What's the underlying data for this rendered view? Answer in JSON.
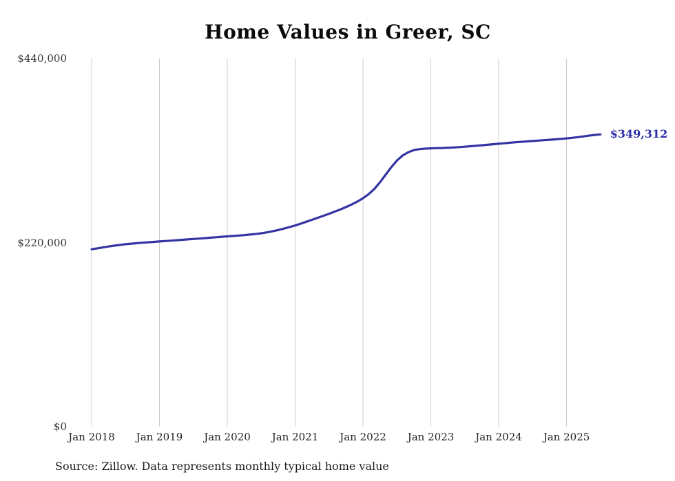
{
  "chart_data": {
    "type": "line",
    "title": "Home Values in Greer, SC",
    "xlabel": "",
    "ylabel": "",
    "ylim": [
      0,
      440000
    ],
    "grid": "vertical-only",
    "legend": "none",
    "series_name": "Monthly typical home value",
    "x_tick_labels": [
      "Jan 2018",
      "Jan 2019",
      "Jan 2020",
      "Jan 2021",
      "Jan 2022",
      "Jan 2023",
      "Jan 2024",
      "Jan 2025"
    ],
    "y_ticks": [
      {
        "value": 0,
        "label": "$0"
      },
      {
        "value": 220000,
        "label": "$220,000"
      },
      {
        "value": 440000,
        "label": "$440,000"
      }
    ],
    "end_label": "$349,312",
    "end_value": 349312,
    "x": [
      "2018-01",
      "2018-02",
      "2018-03",
      "2018-04",
      "2018-05",
      "2018-06",
      "2018-07",
      "2018-08",
      "2018-09",
      "2018-10",
      "2018-11",
      "2018-12",
      "2019-01",
      "2019-02",
      "2019-03",
      "2019-04",
      "2019-05",
      "2019-06",
      "2019-07",
      "2019-08",
      "2019-09",
      "2019-10",
      "2019-11",
      "2019-12",
      "2020-01",
      "2020-02",
      "2020-03",
      "2020-04",
      "2020-05",
      "2020-06",
      "2020-07",
      "2020-08",
      "2020-09",
      "2020-10",
      "2020-11",
      "2020-12",
      "2021-01",
      "2021-02",
      "2021-03",
      "2021-04",
      "2021-05",
      "2021-06",
      "2021-07",
      "2021-08",
      "2021-09",
      "2021-10",
      "2021-11",
      "2021-12",
      "2022-01",
      "2022-02",
      "2022-03",
      "2022-04",
      "2022-05",
      "2022-06",
      "2022-07",
      "2022-08",
      "2022-09",
      "2022-10",
      "2022-11",
      "2022-12",
      "2023-01",
      "2023-02",
      "2023-03",
      "2023-04",
      "2023-05",
      "2023-06",
      "2023-07",
      "2023-08",
      "2023-09",
      "2023-10",
      "2023-11",
      "2023-12",
      "2024-01",
      "2024-02",
      "2024-03",
      "2024-04",
      "2024-05",
      "2024-06",
      "2024-07",
      "2024-08",
      "2024-09",
      "2024-10",
      "2024-11",
      "2024-12",
      "2025-01",
      "2025-02",
      "2025-03",
      "2025-04",
      "2025-05",
      "2025-06",
      "2025-07"
    ],
    "values": [
      212000,
      213100,
      214200,
      215300,
      216300,
      217200,
      218000,
      218700,
      219300,
      219800,
      220300,
      220800,
      221300,
      221800,
      222300,
      222800,
      223300,
      223800,
      224300,
      224800,
      225300,
      225800,
      226300,
      226900,
      227400,
      227900,
      228400,
      228900,
      229500,
      230200,
      231100,
      232200,
      233500,
      235000,
      236700,
      238500,
      240400,
      242600,
      244900,
      247200,
      249600,
      252000,
      254500,
      257000,
      259600,
      262400,
      265500,
      269000,
      273000,
      277800,
      284000,
      292000,
      301000,
      310000,
      318000,
      324000,
      328000,
      330500,
      331700,
      332300,
      332600,
      332800,
      333000,
      333300,
      333700,
      334100,
      334600,
      335100,
      335700,
      336300,
      336900,
      337500,
      338100,
      338700,
      339300,
      339900,
      340400,
      340900,
      341400,
      341900,
      342400,
      342900,
      343400,
      343900,
      344500,
      345200,
      346000,
      346900,
      347800,
      348600,
      349312
    ],
    "style": {
      "line_color": "#3434a4",
      "end_label_color": "#2b2ba6",
      "grid_color": "#cccccc",
      "axis_text_color": "#333333",
      "title_color": "#0b0b0b",
      "background": "#ffffff"
    }
  },
  "source_note": "Source: Zillow. Data represents monthly typical home value"
}
